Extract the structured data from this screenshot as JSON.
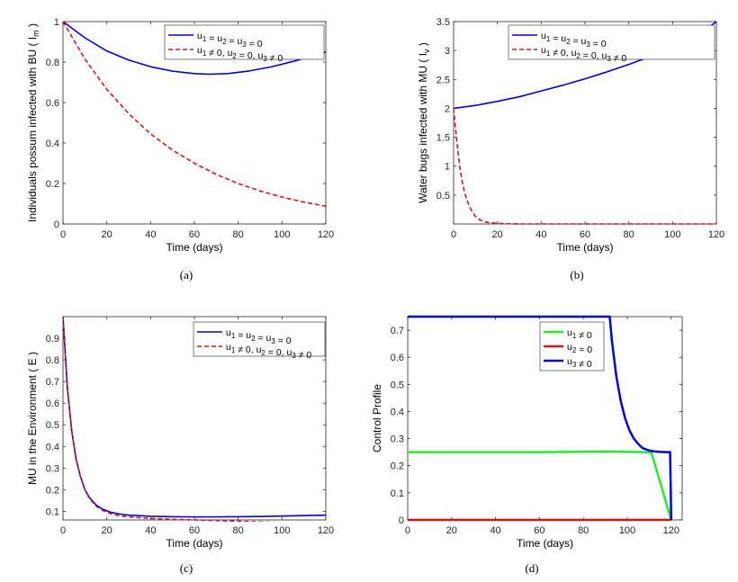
{
  "colors": {
    "blue": "#0000ee",
    "red": "#e01010",
    "green": "#22ee22",
    "axis": "#262626"
  },
  "chart_data": [
    {
      "id": "a",
      "type": "line",
      "caption": "(a)",
      "xlabel": "Time (days)",
      "ylabel": "Individuals possum infected with BU ( I",
      "ylabel_sub": "m",
      "ylabel_end": " )",
      "xlim": [
        0,
        120
      ],
      "ylim": [
        0,
        1
      ],
      "xticks": [
        0,
        20,
        40,
        60,
        80,
        100,
        120
      ],
      "yticks": [
        0,
        0.2,
        0.4,
        0.6,
        0.8,
        1
      ],
      "ytick_labels": [
        "0",
        "0.2",
        "0.4",
        "0.6",
        "0.8",
        "1"
      ],
      "legend": [
        "u1 = u2 = u3 = 0",
        "u1 ≠ 0, u2 = 0, u3 ≠ 0"
      ],
      "series": [
        {
          "name": "u1 = u2 = u3 = 0",
          "color": "blue",
          "dash": false,
          "x": [
            0,
            10,
            20,
            30,
            40,
            50,
            60,
            67,
            75,
            85,
            95,
            105,
            112,
            120
          ],
          "y": [
            1.0,
            0.92,
            0.855,
            0.81,
            0.777,
            0.755,
            0.743,
            0.74,
            0.743,
            0.756,
            0.776,
            0.803,
            0.824,
            0.85
          ]
        },
        {
          "name": "u1 ≠ 0, u2 = 0, u3 ≠ 0",
          "color": "red",
          "dash": true,
          "x": [
            0,
            10,
            20,
            30,
            40,
            50,
            60,
            70,
            80,
            90,
            100,
            110,
            120
          ],
          "y": [
            1.0,
            0.815,
            0.665,
            0.545,
            0.445,
            0.365,
            0.3,
            0.245,
            0.2,
            0.163,
            0.133,
            0.108,
            0.088
          ]
        }
      ]
    },
    {
      "id": "b",
      "type": "line",
      "caption": "(b)",
      "xlabel": "Time (days)",
      "ylabel": "Water bugs infected with MU ( I",
      "ylabel_sub": "v",
      "ylabel_end": " )",
      "xlim": [
        0,
        120
      ],
      "ylim": [
        0,
        3.5
      ],
      "xticks": [
        0,
        20,
        40,
        60,
        80,
        100,
        120
      ],
      "yticks": [
        0.5,
        1,
        1.5,
        2,
        2.5,
        3,
        3.5
      ],
      "ytick_labels": [
        "0.5",
        "1",
        "1.5",
        "2",
        "2.5",
        "3",
        "3.5"
      ],
      "legend": [
        "u1 = u2 = u3 = 0",
        "u1 ≠ 0, u2 = 0, u3 ≠ 0"
      ],
      "series": [
        {
          "name": "u1 = u2 = u3 = 0",
          "color": "blue",
          "dash": false,
          "x": [
            0,
            10,
            20,
            30,
            40,
            50,
            60,
            70,
            80,
            90,
            100,
            110,
            120
          ],
          "y": [
            2.0,
            2.05,
            2.12,
            2.2,
            2.3,
            2.4,
            2.51,
            2.63,
            2.76,
            2.9,
            3.05,
            3.22,
            3.5
          ]
        },
        {
          "name": "u1 ≠ 0, u2 = 0, u3 ≠ 0",
          "color": "red",
          "dash": true,
          "x": [
            0,
            1,
            2,
            3,
            4,
            5,
            6,
            8,
            10,
            12,
            15,
            20,
            30,
            60,
            90,
            120
          ],
          "y": [
            2.0,
            1.6,
            1.25,
            0.95,
            0.72,
            0.55,
            0.42,
            0.24,
            0.13,
            0.07,
            0.03,
            0.01,
            0.0,
            0.0,
            0.0,
            0.0
          ]
        }
      ]
    },
    {
      "id": "c",
      "type": "line",
      "caption": "(c)",
      "xlabel": "Time (days)",
      "ylabel": "MU in the Environment ( E )",
      "ylabel_sub": "",
      "ylabel_end": "",
      "xlim": [
        0,
        120
      ],
      "ylim": [
        0.06,
        1
      ],
      "xticks": [
        0,
        20,
        40,
        60,
        80,
        100,
        120
      ],
      "yticks": [
        0.1,
        0.2,
        0.3,
        0.4,
        0.5,
        0.6,
        0.7,
        0.8,
        0.9
      ],
      "ytick_labels": [
        "0.1",
        "0.2",
        "0.3",
        "0.4",
        "0.5",
        "0.6",
        "0.7",
        "0.8",
        "0.9"
      ],
      "legend": [
        "u1 = u2 = u3 = 0",
        "u1 ≠ 0, u2 = 0, u3 ≠ 0"
      ],
      "series": [
        {
          "name": "u1 = u2 = u3 = 0",
          "color": "blue",
          "dash": false,
          "x": [
            0,
            2,
            4,
            6,
            8,
            10,
            12,
            15,
            18,
            22,
            26,
            30,
            40,
            50,
            60,
            70,
            80,
            90,
            100,
            110,
            120
          ],
          "y": [
            1.0,
            0.67,
            0.47,
            0.34,
            0.26,
            0.2,
            0.165,
            0.13,
            0.11,
            0.095,
            0.087,
            0.082,
            0.077,
            0.075,
            0.074,
            0.074,
            0.075,
            0.076,
            0.078,
            0.08,
            0.082
          ]
        },
        {
          "name": "u1 ≠ 0, u2 = 0, u3 ≠ 0",
          "color": "red",
          "dash": true,
          "x": [
            0,
            2,
            4,
            6,
            8,
            10,
            12,
            15,
            18,
            22,
            26,
            30,
            40,
            50,
            60,
            70,
            80,
            90,
            100,
            110,
            120
          ],
          "y": [
            1.0,
            0.67,
            0.47,
            0.34,
            0.26,
            0.2,
            0.16,
            0.125,
            0.104,
            0.088,
            0.079,
            0.074,
            0.067,
            0.063,
            0.06,
            0.057,
            0.054,
            0.051,
            0.048,
            0.046,
            0.044
          ]
        }
      ]
    },
    {
      "id": "d",
      "type": "line",
      "caption": "(d)",
      "xlabel": "Time (days)",
      "ylabel": "Control Profile",
      "ylabel_sub": "",
      "ylabel_end": "",
      "xlim": [
        0,
        125
      ],
      "ylim": [
        0,
        0.75
      ],
      "xticks": [
        0,
        20,
        40,
        60,
        80,
        100,
        120
      ],
      "yticks": [
        0,
        0.1,
        0.2,
        0.3,
        0.4,
        0.5,
        0.6,
        0.7
      ],
      "ytick_labels": [
        "0",
        "0.1",
        "0.2",
        "0.3",
        "0.4",
        "0.5",
        "0.6",
        "0.7"
      ],
      "legend": [
        "u1 ≠ 0",
        "u2 = 0",
        "u3 ≠ 0"
      ],
      "series": [
        {
          "name": "u1 ≠ 0",
          "color": "green",
          "dash": false,
          "width": 2.5,
          "x": [
            0,
            60,
            90,
            108,
            111,
            120
          ],
          "y": [
            0.25,
            0.25,
            0.252,
            0.25,
            0.248,
            0.0
          ]
        },
        {
          "name": "u2 = 0",
          "color": "red",
          "dash": false,
          "width": 2.5,
          "x": [
            0,
            120
          ],
          "y": [
            0.0,
            0.0
          ]
        },
        {
          "name": "u3 ≠ 0",
          "color": "blue",
          "dash": false,
          "width": 2.5,
          "x": [
            0,
            92,
            93,
            95,
            97,
            99,
            101,
            103,
            105,
            107,
            110,
            113,
            117,
            119.5,
            120
          ],
          "y": [
            0.75,
            0.75,
            0.66,
            0.53,
            0.44,
            0.375,
            0.33,
            0.3,
            0.28,
            0.265,
            0.256,
            0.252,
            0.25,
            0.25,
            0.0
          ]
        }
      ]
    }
  ]
}
